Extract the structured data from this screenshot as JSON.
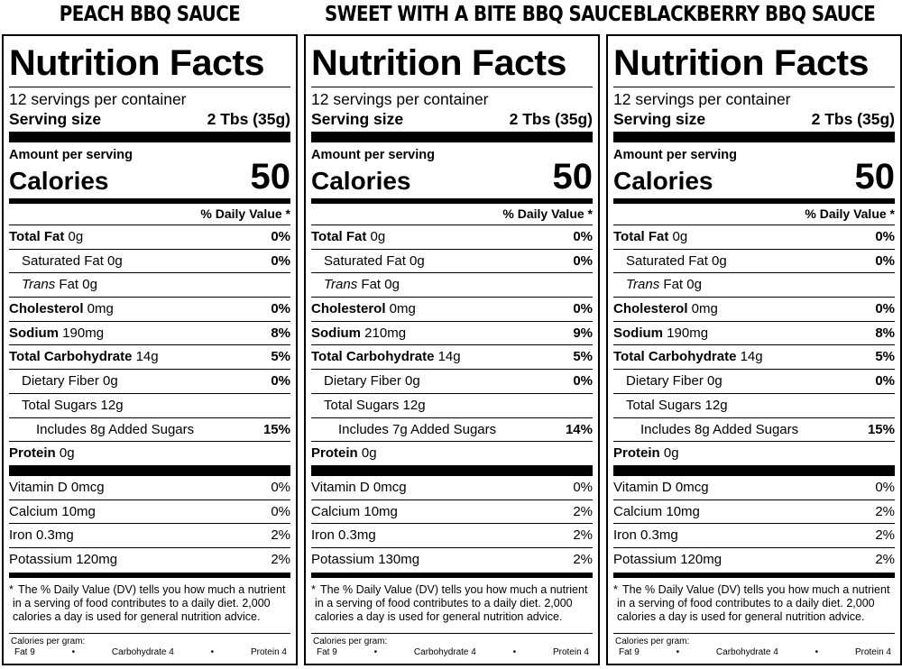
{
  "common": {
    "heading": "Nutrition Facts",
    "servings": "12 servings per container",
    "serving_size_label": "Serving size",
    "serving_size_value": "2 Tbs (35g)",
    "amount_per_serving": "Amount per serving",
    "calories_label": "Calories",
    "calories_value": "50",
    "dv_header": "% Daily Value *",
    "footnote_star": "*",
    "footnote": "The % Daily Value (DV) tells you how much a nutrient in a serving of food contributes to a daily diet. 2,000 calories a day is used for general nutrition advice.",
    "cpg_label": "Calories per gram:",
    "cpg_fat": "Fat 9",
    "cpg_carb": "Carbohydrate 4",
    "cpg_protein": "Protein 4",
    "bullet": "•"
  },
  "labels": {
    "total_fat": "Total Fat",
    "sat_fat": "Saturated Fat",
    "trans_italic": "Trans",
    "trans_rest": " Fat",
    "cholesterol": "Cholesterol",
    "sodium": "Sodium",
    "total_carb": "Total Carbohydrate",
    "fiber": "Dietary Fiber",
    "total_sugars": "Total Sugars",
    "added_sugars_pre": "Includes",
    "added_sugars_post": "Added Sugars",
    "protein": "Protein",
    "vitd": "Vitamin D",
    "calcium": "Calcium",
    "iron": "Iron",
    "potassium": "Potassium"
  },
  "products": [
    {
      "title": "PEACH BBQ SAUCE",
      "total_fat": " 0g",
      "total_fat_dv": "0%",
      "sat_fat": " 0g",
      "sat_fat_dv": "0%",
      "trans_fat": " 0g",
      "cholesterol": " 0mg",
      "cholesterol_dv": "0%",
      "sodium": " 190mg",
      "sodium_dv": "8%",
      "total_carb": " 14g",
      "total_carb_dv": "5%",
      "fiber": " 0g",
      "fiber_dv": "0%",
      "total_sugars": " 12g",
      "added_sugars": " 8g ",
      "added_sugars_dv": "15%",
      "protein": " 0g",
      "vitd": " 0mcg",
      "vitd_dv": "0%",
      "calcium": " 10mg",
      "calcium_dv": "0%",
      "iron": " 0.3mg",
      "iron_dv": "2%",
      "potassium": " 120mg",
      "potassium_dv": "2%"
    },
    {
      "title": "SWEET WITH A BITE BBQ SAUCE",
      "total_fat": " 0g",
      "total_fat_dv": "0%",
      "sat_fat": " 0g",
      "sat_fat_dv": "0%",
      "trans_fat": " 0g",
      "cholesterol": " 0mg",
      "cholesterol_dv": "0%",
      "sodium": " 210mg",
      "sodium_dv": "9%",
      "total_carb": " 14g",
      "total_carb_dv": "5%",
      "fiber": " 0g",
      "fiber_dv": "0%",
      "total_sugars": " 12g",
      "added_sugars": " 7g ",
      "added_sugars_dv": "14%",
      "protein": " 0g",
      "vitd": " 0mcg",
      "vitd_dv": "0%",
      "calcium": " 10mg",
      "calcium_dv": "2%",
      "iron": " 0.3mg",
      "iron_dv": "2%",
      "potassium": " 130mg",
      "potassium_dv": "2%"
    },
    {
      "title": "BLACKBERRY BBQ SAUCE",
      "total_fat": " 0g",
      "total_fat_dv": "0%",
      "sat_fat": " 0g",
      "sat_fat_dv": "0%",
      "trans_fat": " 0g",
      "cholesterol": " 0mg",
      "cholesterol_dv": "0%",
      "sodium": " 190mg",
      "sodium_dv": "8%",
      "total_carb": " 14g",
      "total_carb_dv": "5%",
      "fiber": " 0g",
      "fiber_dv": "0%",
      "total_sugars": " 12g",
      "added_sugars": " 8g ",
      "added_sugars_dv": "15%",
      "protein": " 0g",
      "vitd": " 0mcg",
      "vitd_dv": "0%",
      "calcium": " 10mg",
      "calcium_dv": "2%",
      "iron": " 0.3mg",
      "iron_dv": "2%",
      "potassium": " 120mg",
      "potassium_dv": "2%"
    }
  ]
}
